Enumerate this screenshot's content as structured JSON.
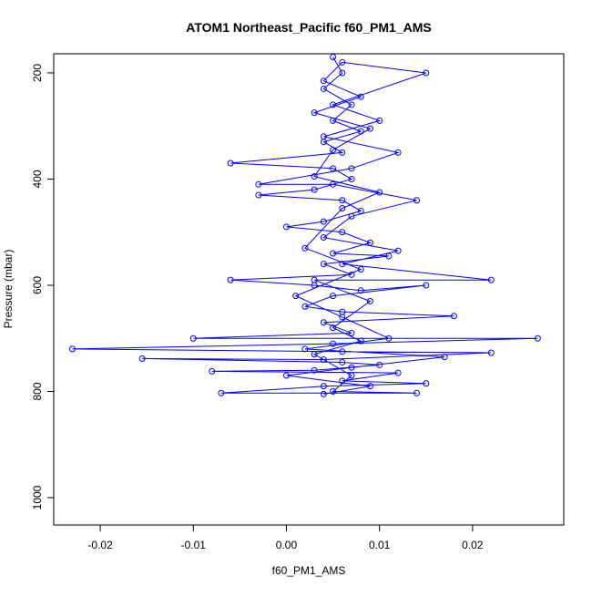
{
  "chart_data": {
    "type": "line",
    "marker": "circle",
    "title": "ATOM1 Northeast_Pacific f60_PM1_AMS",
    "x_label": "f60_PM1_AMS",
    "y_label": "Pressure (mbar)",
    "color": "#0000ff",
    "y_inverted": true,
    "xlim": [
      -0.025,
      0.0298
    ],
    "ylim": [
      164,
      1051.5
    ],
    "xticks": [
      -0.02,
      -0.01,
      {
        "value": 0,
        "label": "0.00"
      },
      0.01,
      0.02
    ],
    "yticks": [
      200,
      400,
      600,
      800,
      1000
    ],
    "x": [
      0.005,
      0.006,
      0.004,
      0.007,
      0.005,
      0.008,
      0.004,
      0.006,
      -0.006,
      0.005,
      0.007,
      0.003,
      -0.003,
      0.006,
      0.008,
      0.004,
      0.0,
      0.006,
      0.009,
      0.005,
      0.011,
      0.004,
      0.007,
      -0.006,
      0.003,
      0.008,
      0.015,
      0.005,
      0.002,
      0.006,
      0.018,
      0.004,
      0.007,
      -0.01,
      0.027,
      0.005,
      -0.023,
      0.006,
      0.022,
      0.004,
      -0.0155,
      0.006,
      0.01,
      0.003,
      -0.008,
      0.012,
      0.006,
      0.015,
      0.004,
      -0.007,
      0.014,
      0.005,
      0.007,
      0.003,
      0.008,
      0.005,
      0.009,
      0.003,
      0.022,
      0.006,
      0.012,
      0.004,
      0.007,
      0.014,
      0.005,
      -0.003,
      0.007,
      0.012,
      0.004,
      0.01,
      0.005,
      0.015,
      0.006,
      0.004,
      0.008,
      0.003,
      0.009,
      0.005,
      0.003,
      0.01,
      0.006,
      0.002,
      0.008,
      0.001,
      0.006,
      0.011,
      0.002,
      0.017,
      0.007,
      0.0,
      0.009,
      0.004
    ],
    "values": [
      170,
      200,
      230,
      260,
      290,
      310,
      330,
      350,
      370,
      380,
      400,
      420,
      430,
      440,
      460,
      480,
      490,
      500,
      520,
      540,
      545,
      560,
      580,
      590,
      600,
      610,
      600,
      620,
      640,
      650,
      658,
      670,
      690,
      700,
      700,
      710,
      720,
      725,
      727,
      740,
      738,
      745,
      750,
      760,
      762,
      765,
      780,
      785,
      790,
      803,
      803,
      800,
      770,
      730,
      705,
      680,
      630,
      590,
      590,
      560,
      535,
      510,
      470,
      440,
      410,
      410,
      380,
      350,
      320,
      290,
      260,
      200,
      180,
      215,
      245,
      275,
      305,
      345,
      395,
      425,
      455,
      530,
      570,
      620,
      660,
      700,
      720,
      735,
      755,
      770,
      790,
      805
    ]
  }
}
